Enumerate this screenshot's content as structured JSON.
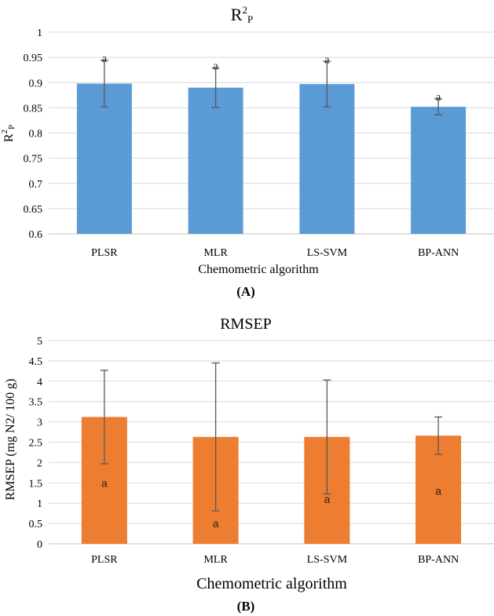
{
  "chart_data": [
    {
      "type": "bar",
      "title": "R",
      "title_sup": "2",
      "title_sub": "P",
      "xlabel": "Chemometric algorithm",
      "ylabel": "R",
      "ylabel_sup": "2",
      "ylabel_sub": "P",
      "panel_label": "(A)",
      "categories": [
        "PLSR",
        "MLR",
        "LS-SVM",
        "BP-ANN"
      ],
      "values": [
        0.898,
        0.89,
        0.897,
        0.852
      ],
      "errors": [
        0.046,
        0.039,
        0.045,
        0.016
      ],
      "significance": [
        "a",
        "a",
        "a",
        "a"
      ],
      "ylim": [
        0.6,
        1.0
      ],
      "yticks": [
        0.6,
        0.65,
        0.7,
        0.75,
        0.8,
        0.85,
        0.9,
        0.95,
        1
      ],
      "ytick_labels": [
        "0.6",
        "0.65",
        "0.7",
        "0.75",
        "0.8",
        "0.85",
        "0.9",
        "0.95",
        "1"
      ],
      "color": "#5B9BD5",
      "grid": true
    },
    {
      "type": "bar",
      "title": "RMSEP",
      "xlabel": "Chemometric algorithm",
      "ylabel": "RMSEP (mg N2/ 100 g)",
      "panel_label": "(B)",
      "categories": [
        "PLSR",
        "MLR",
        "LS-SVM",
        "BP-ANN"
      ],
      "values": [
        3.12,
        2.63,
        2.63,
        2.66
      ],
      "errors": [
        1.15,
        1.82,
        1.4,
        0.46
      ],
      "significance": [
        "a",
        "a",
        "a",
        "a"
      ],
      "label_y": [
        1.5,
        0.5,
        1.1,
        1.3
      ],
      "ylim": [
        0,
        5
      ],
      "yticks": [
        0,
        0.5,
        1,
        1.5,
        2,
        2.5,
        3,
        3.5,
        4,
        4.5,
        5
      ],
      "ytick_labels": [
        "0",
        "0.5",
        "1",
        "1.5",
        "2",
        "2.5",
        "3",
        "3.5",
        "4",
        "4.5",
        "5"
      ],
      "color": "#ED7D31",
      "grid": true
    }
  ]
}
